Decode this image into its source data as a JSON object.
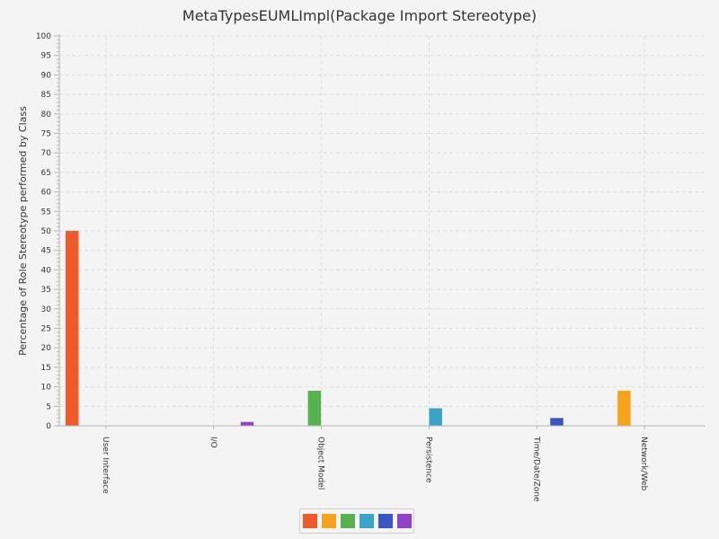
{
  "chart_data": {
    "type": "bar",
    "title": "MetaTypesEUMLImpl(Package Import Stereotype)",
    "xlabel": "",
    "ylabel": "Percentage of Role Stereotype performed by Class",
    "ylim": [
      0,
      100
    ],
    "ytick_step": 5,
    "grid": true,
    "legend_position": "bottom",
    "categories": [
      "User Interface",
      "I/O",
      "Object Model",
      "Persistence",
      "Time/Date/Zone",
      "Network/Web"
    ],
    "series": [
      {
        "color": "#f05a28",
        "values": [
          50,
          0,
          0,
          0,
          0,
          0
        ]
      },
      {
        "color": "#f7a21b",
        "values": [
          0,
          0,
          0,
          0,
          0,
          9
        ]
      },
      {
        "color": "#56b14f",
        "values": [
          0,
          0,
          9,
          0,
          0,
          0
        ]
      },
      {
        "color": "#3ba3c8",
        "values": [
          0,
          0,
          0,
          4.5,
          0,
          0
        ]
      },
      {
        "color": "#3a56c4",
        "values": [
          0,
          0,
          0,
          0,
          2,
          0
        ]
      },
      {
        "color": "#8e44c4",
        "values": [
          0,
          1,
          0,
          0,
          0,
          0
        ]
      }
    ]
  }
}
